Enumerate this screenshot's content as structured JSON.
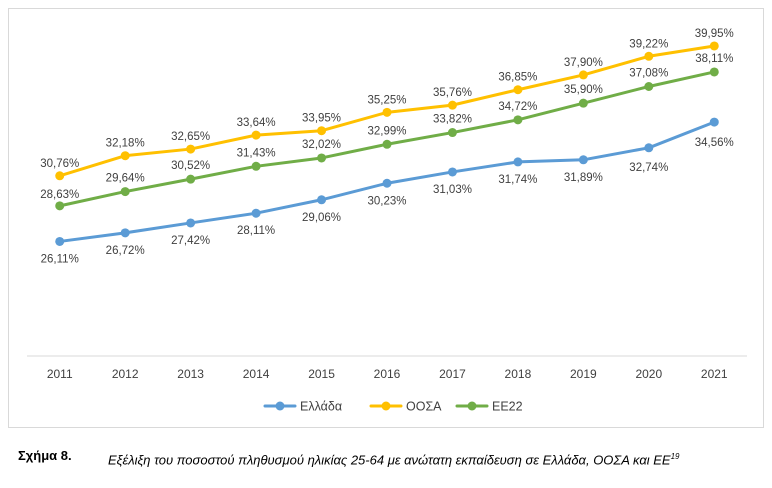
{
  "chart_data": {
    "type": "line",
    "categories": [
      "2011",
      "2012",
      "2013",
      "2014",
      "2015",
      "2016",
      "2017",
      "2018",
      "2019",
      "2020",
      "2021"
    ],
    "ylim": [
      18,
      42
    ],
    "series": [
      {
        "name": "Ελλάδα",
        "color": "#5b9bd5",
        "values": [
          26.11,
          26.72,
          27.42,
          28.11,
          29.06,
          30.23,
          31.03,
          31.74,
          31.89,
          32.74,
          34.56
        ],
        "labels": [
          "26,11%",
          "26,72%",
          "27,42%",
          "28,11%",
          "29,06%",
          "30,23%",
          "31,03%",
          "31,74%",
          "31,89%",
          "32,74%",
          "34,56%"
        ]
      },
      {
        "name": "ΟΟΣΑ",
        "color": "#ffc000",
        "values": [
          30.76,
          32.18,
          32.65,
          33.64,
          33.95,
          35.25,
          35.76,
          36.85,
          37.9,
          39.22,
          39.95
        ],
        "labels": [
          "30,76%",
          "32,18%",
          "32,65%",
          "33,64%",
          "33,95%",
          "35,25%",
          "35,76%",
          "36,85%",
          "37,90%",
          "39,22%",
          "39,95%"
        ]
      },
      {
        "name": "ΕΕ22",
        "color": "#70ad47",
        "values": [
          28.63,
          29.64,
          30.52,
          31.43,
          32.02,
          32.99,
          33.82,
          34.72,
          35.9,
          37.08,
          38.11
        ],
        "labels": [
          "28,63%",
          "29,64%",
          "30,52%",
          "31,43%",
          "32,02%",
          "32,99%",
          "33,82%",
          "34,72%",
          "35,90%",
          "37,08%",
          "38,11%"
        ]
      }
    ]
  },
  "caption": {
    "label": "Σχήμα 8.",
    "text": "Εξέλιξη του ποσοστού πληθυσμού ηλικίας 25-64 με ανώτατη εκπαίδευση σε Ελλάδα, ΟΟΣΑ και ΕΕ",
    "superscript": "19"
  }
}
